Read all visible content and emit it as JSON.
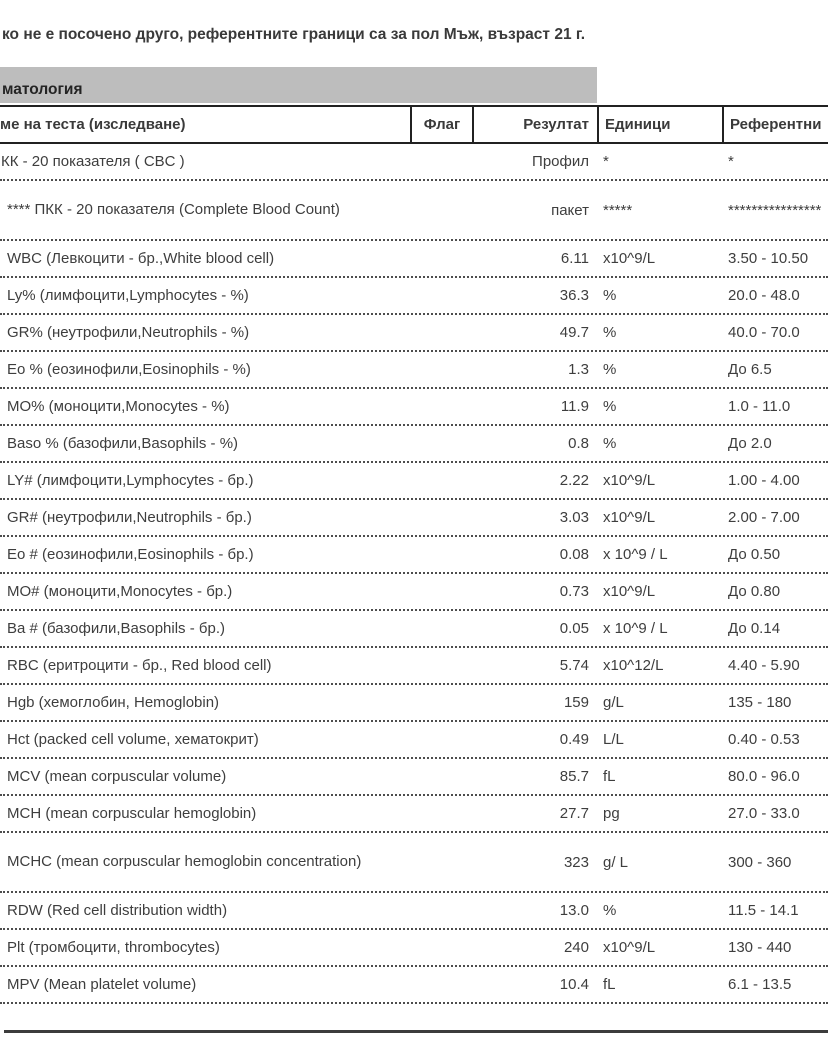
{
  "note": "ко не е посочено друго, референтните граници са за пол Мъж, възраст 21 г.",
  "section": {
    "title": "матология"
  },
  "table": {
    "headers": {
      "name": "ме на теста (изследване)",
      "flag": "Флаг",
      "result": "Резултат",
      "units": "Единици",
      "reference": "Референтни"
    },
    "rows": [
      {
        "name": "КК - 20 показателя ( CBC )",
        "flag": "",
        "result": "Профил",
        "units": "*",
        "reference": "*"
      },
      {
        "name": "**** ПКК - 20 показателя (Complete Blood Count)",
        "flag": "",
        "result": "пакет",
        "units": "*****",
        "reference": "****************"
      },
      {
        "name": "WBC (Левкоцити - бр.,White blood cell)",
        "flag": "",
        "result": "6.11",
        "units": "x10^9/L",
        "reference": "3.50 - 10.50"
      },
      {
        "name": "Ly% (лимфоцити,Lymphocytes - %)",
        "flag": "",
        "result": "36.3",
        "units": "%",
        "reference": "20.0 - 48.0"
      },
      {
        "name": "GR% (неутрофили,Neutrophils - %)",
        "flag": "",
        "result": "49.7",
        "units": "%",
        "reference": "40.0 - 70.0"
      },
      {
        "name": "Eo % (еозинофили,Eosinophils - %)",
        "flag": "",
        "result": "1.3",
        "units": "%",
        "reference": "До 6.5"
      },
      {
        "name": "MO% (моноцити,Monocytes - %)",
        "flag": "",
        "result": "11.9",
        "units": "%",
        "reference": "1.0 - 11.0"
      },
      {
        "name": "Baso % (базофили,Basophils - %)",
        "flag": "",
        "result": "0.8",
        "units": "%",
        "reference": "До 2.0"
      },
      {
        "name": "LY# (лимфоцити,Lymphocytes - бр.)",
        "flag": "",
        "result": "2.22",
        "units": "x10^9/L",
        "reference": "1.00 - 4.00"
      },
      {
        "name": "GR# (неутрофили,Neutrophils - бр.)",
        "flag": "",
        "result": "3.03",
        "units": "x10^9/L",
        "reference": "2.00 - 7.00"
      },
      {
        "name": "Eo # (еозинофили,Eosinophils - бр.)",
        "flag": "",
        "result": "0.08",
        "units": "x 10^9 / L",
        "reference": "До 0.50"
      },
      {
        "name": "MO# (моноцити,Monocytes - бр.)",
        "flag": "",
        "result": "0.73",
        "units": "x10^9/L",
        "reference": "До 0.80"
      },
      {
        "name": "Ba # (базофили,Basophils - бр.)",
        "flag": "",
        "result": "0.05",
        "units": "x 10^9 / L",
        "reference": "До 0.14"
      },
      {
        "name": "RBC (еритроцити - бр., Red blood cell)",
        "flag": "",
        "result": "5.74",
        "units": "x10^12/L",
        "reference": "4.40 - 5.90"
      },
      {
        "name": "Hgb (хемоглобин, Hemoglobin)",
        "flag": "",
        "result": "159",
        "units": "g/L",
        "reference": "135 - 180"
      },
      {
        "name": "Hct (packed cell volume, хематокрит)",
        "flag": "",
        "result": "0.49",
        "units": "L/L",
        "reference": "0.40 - 0.53"
      },
      {
        "name": "MCV (mean corpuscular volume)",
        "flag": "",
        "result": "85.7",
        "units": "fL",
        "reference": "80.0 - 96.0"
      },
      {
        "name": "MCH (mean corpuscular hemoglobin)",
        "flag": "",
        "result": "27.7",
        "units": "pg",
        "reference": "27.0 - 33.0"
      },
      {
        "name": "MCHC (mean corpuscular hemoglobin concentration)",
        "flag": "",
        "result": "323",
        "units": "g/ L",
        "reference": "300 - 360"
      },
      {
        "name": "RDW (Red cell distribution width)",
        "flag": "",
        "result": "13.0",
        "units": "%",
        "reference": "11.5 - 14.1"
      },
      {
        "name": "Plt (тромбоцити, thrombocytes)",
        "flag": "",
        "result": "240",
        "units": "x10^9/L",
        "reference": "130 - 440"
      },
      {
        "name": "MPV (Mean platelet volume)",
        "flag": "",
        "result": "10.4",
        "units": "fL",
        "reference": "6.1 - 13.5"
      }
    ]
  },
  "colors": {
    "section_bar": "#bdbdbd",
    "text": "#3e3e3e",
    "border": "#212121"
  }
}
